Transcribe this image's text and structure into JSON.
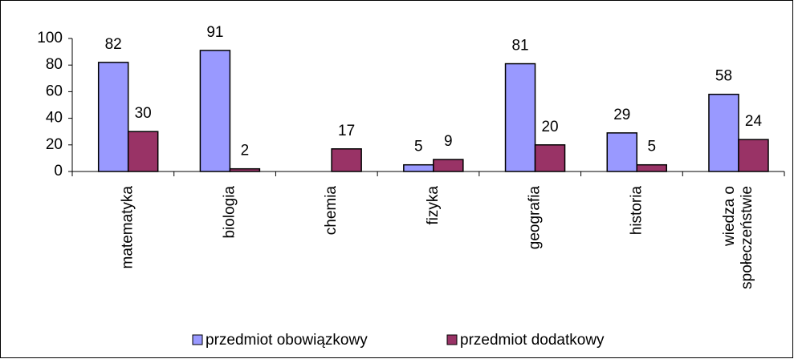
{
  "chart_data": {
    "type": "bar",
    "categories": [
      "matematyka",
      "biologia",
      "chemia",
      "fizyka",
      "geografia",
      "historia",
      "wiedza o społeczeństwie"
    ],
    "series": [
      {
        "name": "przedmiot obowiązkowy",
        "color": "#9999ff",
        "values": [
          82,
          91,
          null,
          5,
          81,
          29,
          58
        ]
      },
      {
        "name": "przedmiot dodatkowy",
        "color": "#993366",
        "values": [
          30,
          2,
          17,
          9,
          20,
          5,
          24
        ]
      }
    ],
    "ylim": [
      0,
      100
    ],
    "yticks": [
      0,
      20,
      40,
      60,
      80,
      100
    ],
    "grid": false,
    "legend": "bottom"
  }
}
